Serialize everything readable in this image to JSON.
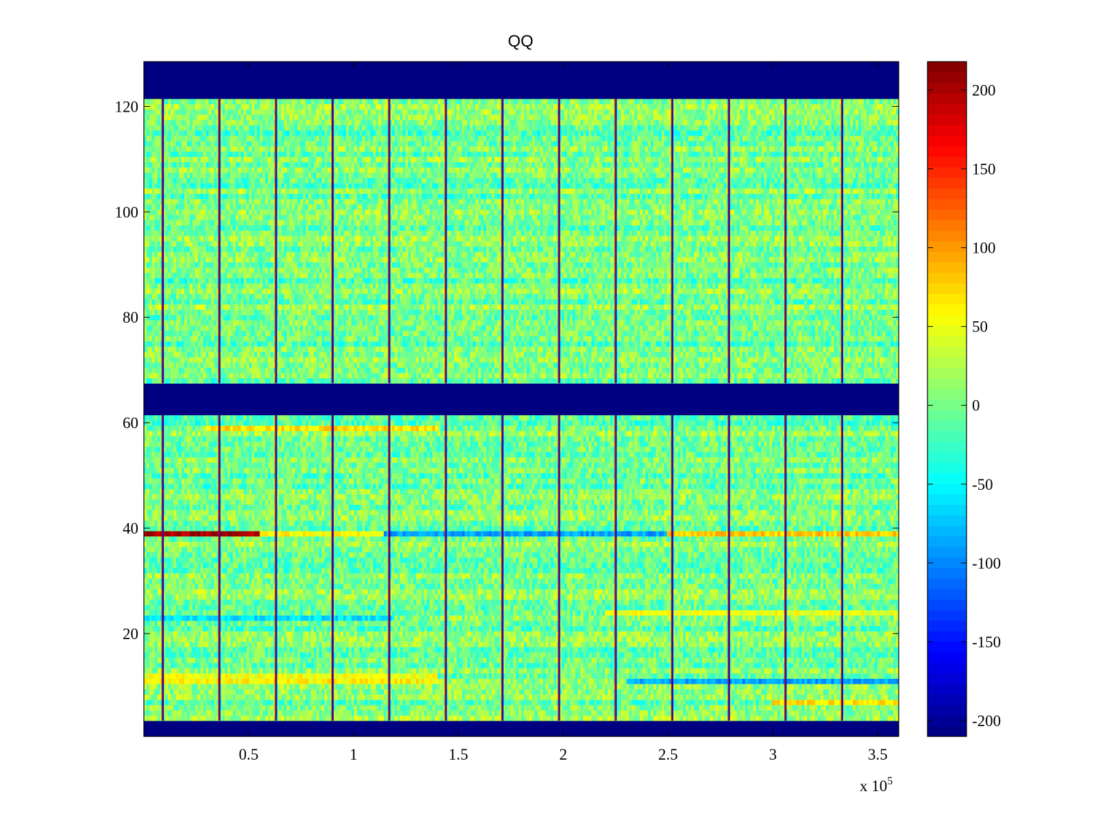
{
  "chart_data": {
    "type": "heatmap",
    "title": "QQ",
    "xlabel": "",
    "ylabel": "",
    "x_exponent_label": "x 10",
    "x_exponent_power": "5",
    "x_range": [
      0,
      3.6
    ],
    "y_range": [
      0.5,
      128.5
    ],
    "x_ticks": [
      {
        "value": 0.5,
        "label": "0.5"
      },
      {
        "value": 1.0,
        "label": "1"
      },
      {
        "value": 1.5,
        "label": "1.5"
      },
      {
        "value": 2.0,
        "label": "2"
      },
      {
        "value": 2.5,
        "label": "2.5"
      },
      {
        "value": 3.0,
        "label": "3"
      },
      {
        "value": 3.5,
        "label": "3.5"
      }
    ],
    "y_ticks": [
      {
        "value": 20,
        "label": "20"
      },
      {
        "value": 40,
        "label": "40"
      },
      {
        "value": 60,
        "label": "60"
      },
      {
        "value": 80,
        "label": "80"
      },
      {
        "value": 100,
        "label": "100"
      },
      {
        "value": 120,
        "label": "120"
      }
    ],
    "colormap": "jet",
    "color_range": [
      -210,
      218
    ],
    "colorbar_ticks": [
      {
        "value": 200,
        "label": "200"
      },
      {
        "value": 150,
        "label": "150"
      },
      {
        "value": 100,
        "label": "100"
      },
      {
        "value": 50,
        "label": "50"
      },
      {
        "value": 0,
        "label": "0"
      },
      {
        "value": -50,
        "label": "-50"
      },
      {
        "value": -100,
        "label": "-100"
      },
      {
        "value": -150,
        "label": "-150"
      },
      {
        "value": -200,
        "label": "-200"
      }
    ],
    "dark_blue_row_bands": [
      [
        1,
        3
      ],
      [
        62,
        67
      ],
      [
        122,
        128
      ]
    ],
    "data_row_bands": [
      [
        4,
        61
      ],
      [
        68,
        121
      ]
    ],
    "background_level": 0,
    "vertical_segment_boundaries_x": [
      0.09,
      0.36,
      0.63,
      0.9,
      1.17,
      1.44,
      1.71,
      1.98,
      2.25,
      2.52,
      2.79,
      3.06,
      3.33
    ],
    "notable_row_features": [
      {
        "row": 39,
        "x_start": 0.0,
        "x_end": 0.55,
        "level": 200
      },
      {
        "row": 39,
        "x_start": 0.55,
        "x_end": 1.15,
        "level": 60
      },
      {
        "row": 39,
        "x_start": 1.15,
        "x_end": 2.5,
        "level": -90
      },
      {
        "row": 39,
        "x_start": 2.5,
        "x_end": 3.6,
        "level": 80
      },
      {
        "row": 11,
        "x_start": 0.0,
        "x_end": 1.4,
        "level": 60
      },
      {
        "row": 12,
        "x_start": 0.0,
        "x_end": 1.4,
        "level": 50
      },
      {
        "row": 59,
        "x_start": 0.3,
        "x_end": 1.4,
        "level": 70
      },
      {
        "row": 23,
        "x_start": 0.0,
        "x_end": 1.2,
        "level": -60
      },
      {
        "row": 11,
        "x_start": 2.3,
        "x_end": 3.6,
        "level": -90
      },
      {
        "row": 7,
        "x_start": 3.0,
        "x_end": 3.6,
        "level": 70
      },
      {
        "row": 24,
        "x_start": 2.2,
        "x_end": 3.6,
        "level": 50
      }
    ]
  }
}
